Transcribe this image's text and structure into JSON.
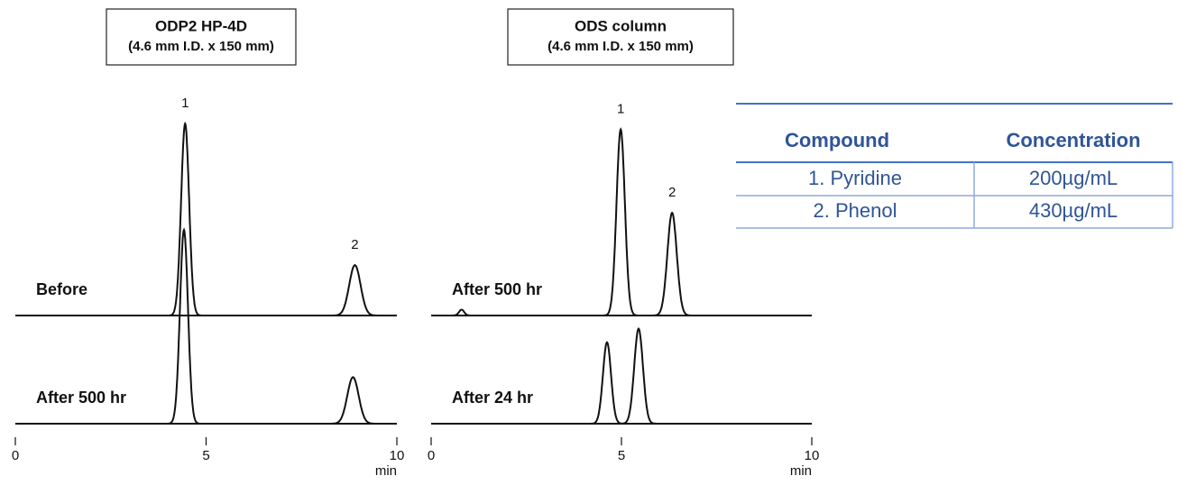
{
  "chart_data": [
    {
      "type": "chromatogram",
      "title": "ODP2 HP-4D",
      "subtitle": "(4.6 mm I.D. x 150 mm)",
      "xlim": [
        0,
        10
      ],
      "xticks": [
        0,
        5,
        10
      ],
      "xlabel": "min",
      "ylim": [
        0,
        100
      ],
      "color": "#111111",
      "series": [
        {
          "name": "Before",
          "x": [
            4.45,
            8.9
          ],
          "values": [
            99,
            26
          ],
          "peak_labels": [
            "1",
            "2"
          ]
        },
        {
          "name": "After 500 hr",
          "x": [
            4.42,
            8.85
          ],
          "values": [
            100,
            24
          ]
        }
      ]
    },
    {
      "type": "chromatogram",
      "title": "ODS column",
      "subtitle": "(4.6 mm I.D. x 150 mm)",
      "xlim": [
        0,
        10
      ],
      "xticks": [
        0,
        5,
        10
      ],
      "xlabel": "min",
      "ylim": [
        0,
        100
      ],
      "color": "#111111",
      "series": [
        {
          "name": "After 500 hr",
          "x": [
            0.8,
            4.98,
            6.33
          ],
          "values": [
            3,
            96,
            53
          ],
          "peak_labels": [
            null,
            "1",
            "2"
          ]
        },
        {
          "name": "After 24 hr",
          "x": [
            4.62,
            5.45
          ],
          "values": [
            42,
            49
          ]
        }
      ]
    }
  ],
  "table": {
    "header": [
      "Compound",
      "Concentration"
    ],
    "rows": [
      [
        "1. Pyridine",
        "200µg/mL"
      ],
      [
        "2. Phenol",
        "430µg/mL"
      ]
    ]
  }
}
